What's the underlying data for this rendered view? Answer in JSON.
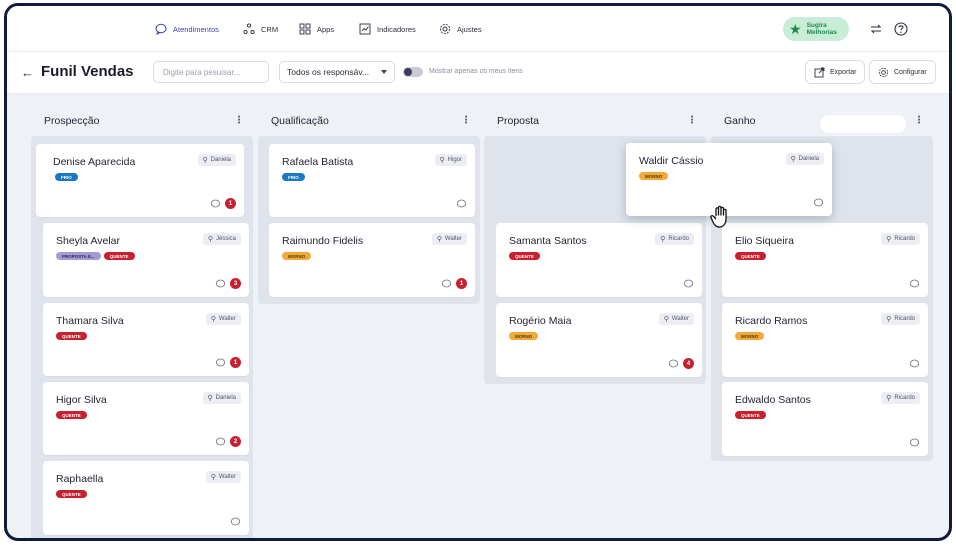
{
  "nav": {
    "items": [
      {
        "label": "Atendimentos",
        "icon": "chat-bubble-icon",
        "active": true
      },
      {
        "label": "CRM",
        "icon": "network-icon",
        "active": false
      },
      {
        "label": "Apps",
        "icon": "grid-icon",
        "active": false
      },
      {
        "label": "Indicadores",
        "icon": "chart-icon",
        "active": false
      },
      {
        "label": "Ajustes",
        "icon": "gear-icon",
        "active": false
      }
    ],
    "suggest_label": "Sugira Melhorias"
  },
  "toolbar": {
    "title": "Funil Vendas",
    "search_placeholder": "Digite para pesuisar...",
    "responsible_select": "Todos os responsáv...",
    "toggle_label": "Mostrar apenas os meus itens",
    "export_label": "Exportar",
    "configure_label": "Configurar"
  },
  "colors": {
    "accent": "#3d3fb5",
    "frio": "#1b78c2",
    "quente": "#c8202e",
    "morno": "#f2a93b",
    "proposta": "#a59bd6"
  },
  "columns": [
    {
      "title": "Prospecção",
      "cards": [
        {
          "name": "Denise Aparecida",
          "owner": "Daniela",
          "tags": [
            "FRIO"
          ],
          "count": "1"
        },
        {
          "name": "Sheyla Avelar",
          "owner": "Jéssica",
          "tags": [
            "PROPOSTA E...",
            "QUENTE"
          ],
          "count": "3"
        },
        {
          "name": "Thamara Silva",
          "owner": "Walter",
          "tags": [
            "QUENTE"
          ],
          "count": "1"
        },
        {
          "name": "Higor Silva",
          "owner": "Daniela",
          "tags": [
            "QUENTE"
          ],
          "count": "2"
        },
        {
          "name": "Raphaella",
          "owner": "Walter",
          "tags": [
            "QUENTE"
          ],
          "count": ""
        }
      ]
    },
    {
      "title": "Qualificação",
      "cards": [
        {
          "name": "Rafaela Batista",
          "owner": "Higor",
          "tags": [
            "FRIO"
          ],
          "count": ""
        },
        {
          "name": "Raimundo Fidelis",
          "owner": "Walter",
          "tags": [
            "MORNO"
          ],
          "count": "1"
        }
      ]
    },
    {
      "title": "Proposta",
      "cards": [
        {
          "name": "Samanta Santos",
          "owner": "Ricardo",
          "tags": [
            "QUENTE"
          ],
          "count": ""
        },
        {
          "name": "Rogério Maia",
          "owner": "Walter",
          "tags": [
            "MORNO"
          ],
          "count": "4"
        }
      ]
    },
    {
      "title": "Ganho",
      "cards": [
        {
          "name": "Elio Siqueira",
          "owner": "Ricardo",
          "tags": [
            "QUENTE"
          ],
          "count": ""
        },
        {
          "name": "Ricardo Ramos",
          "owner": "Ricardo",
          "tags": [
            "MORNO"
          ],
          "count": ""
        },
        {
          "name": "Edwaldo Santos",
          "owner": "Ricardo",
          "tags": [
            "QUENTE"
          ],
          "count": ""
        }
      ]
    }
  ],
  "dragging_card": {
    "name": "Waldir Cássio",
    "owner": "Daniela",
    "tags": [
      "MORNO"
    ],
    "count": ""
  }
}
